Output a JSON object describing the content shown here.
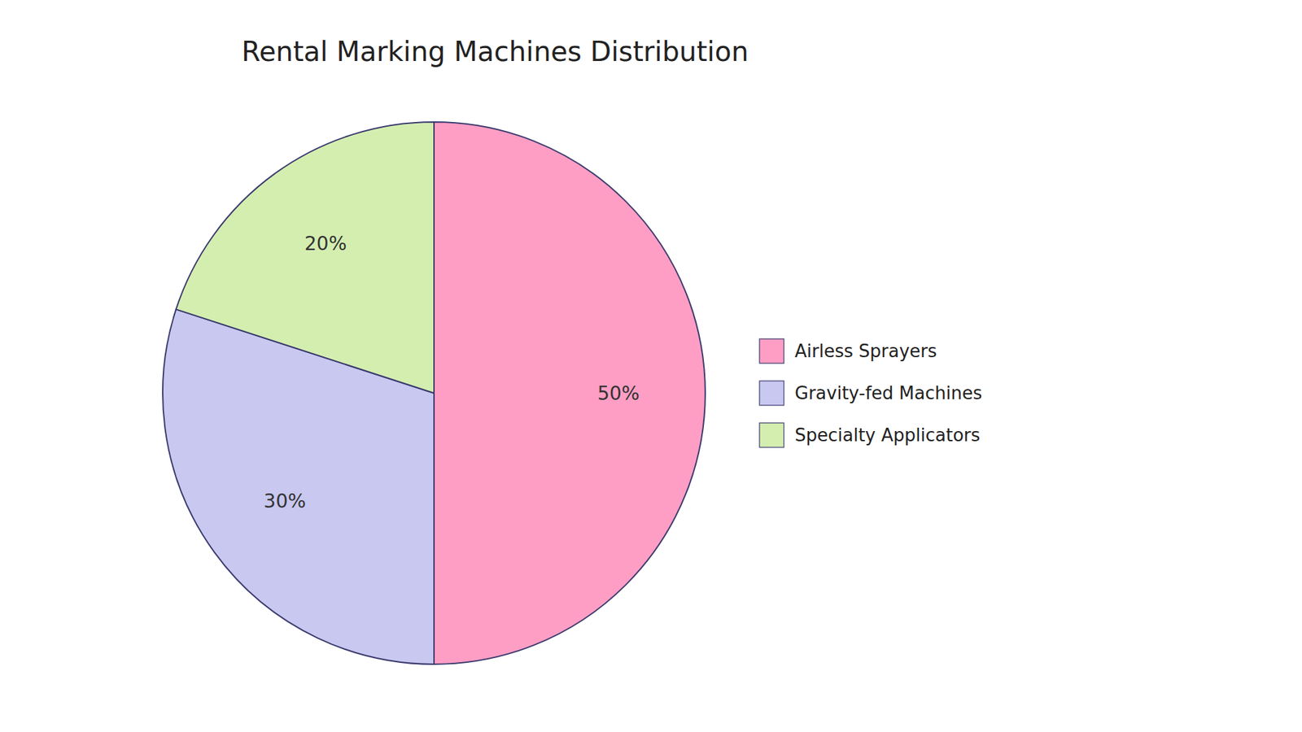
{
  "chart_data": {
    "type": "pie",
    "title": "Rental Marking Machines Distribution",
    "categories": [
      "Airless Sprayers",
      "Gravity-fed Machines",
      "Specialty Applicators"
    ],
    "values": [
      50,
      30,
      20
    ],
    "value_labels": [
      "50%",
      "30%",
      "20%"
    ],
    "colors": [
      "#FF9EC4",
      "#C8C8F0",
      "#D4EEB0"
    ],
    "data_labels": true,
    "legend": "right"
  }
}
